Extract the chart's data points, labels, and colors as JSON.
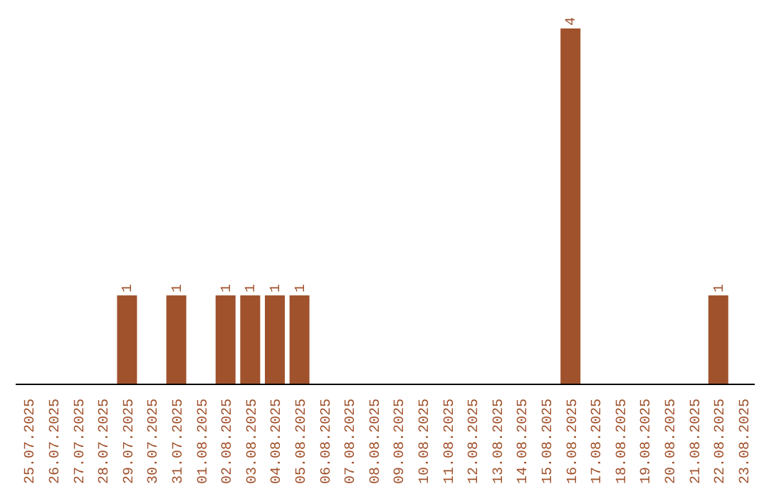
{
  "chart_data": {
    "type": "bar",
    "categories": [
      "25.07.2025",
      "26.07.2025",
      "27.07.2025",
      "28.07.2025",
      "29.07.2025",
      "30.07.2025",
      "31.07.2025",
      "01.08.2025",
      "02.08.2025",
      "03.08.2025",
      "04.08.2025",
      "05.08.2025",
      "06.08.2025",
      "07.08.2025",
      "08.08.2025",
      "09.08.2025",
      "10.08.2025",
      "11.08.2025",
      "12.08.2025",
      "13.08.2025",
      "14.08.2025",
      "15.08.2025",
      "16.08.2025",
      "17.08.2025",
      "18.08.2025",
      "19.08.2025",
      "20.08.2025",
      "21.08.2025",
      "22.08.2025",
      "23.08.2025"
    ],
    "values": [
      0,
      0,
      0,
      0,
      1,
      0,
      1,
      0,
      1,
      1,
      1,
      1,
      0,
      0,
      0,
      0,
      0,
      0,
      0,
      0,
      0,
      0,
      4,
      0,
      0,
      0,
      0,
      0,
      1,
      0
    ],
    "value_labels": [
      null,
      null,
      null,
      null,
      "1",
      null,
      "1",
      null,
      "1",
      "1",
      "1",
      "1",
      null,
      null,
      null,
      null,
      null,
      null,
      null,
      null,
      null,
      null,
      "4",
      null,
      null,
      null,
      null,
      null,
      "1",
      null
    ],
    "color": "#a0522d",
    "tick_labels": "x",
    "grid": false
  }
}
